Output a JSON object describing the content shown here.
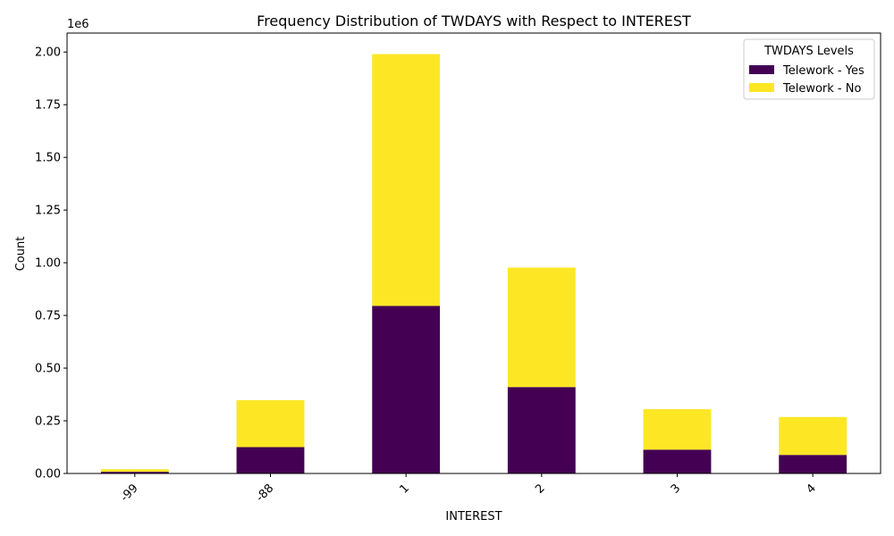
{
  "chart_data": {
    "type": "bar",
    "stacked": true,
    "title": "Frequency Distribution of TWDAYS with Respect to INTEREST",
    "xlabel": "INTEREST",
    "ylabel": "Count",
    "y_scale_label": "1e6",
    "categories": [
      "-99",
      "-88",
      "1",
      "2",
      "3",
      "4"
    ],
    "series": [
      {
        "name": "Telework - Yes",
        "color": "#440154",
        "values": [
          8000,
          125000,
          795000,
          410000,
          113000,
          88000
        ]
      },
      {
        "name": "Telework - No",
        "color": "#fde725",
        "values": [
          12000,
          223000,
          1195000,
          567000,
          192000,
          180000
        ]
      }
    ],
    "ylim": [
      0,
      2090000
    ],
    "yticks": [
      0,
      250000,
      500000,
      750000,
      1000000,
      1250000,
      1500000,
      1750000,
      2000000
    ],
    "ytick_labels": [
      "0.00",
      "0.25",
      "0.50",
      "0.75",
      "1.00",
      "1.25",
      "1.50",
      "1.75",
      "2.00"
    ],
    "grid": false,
    "legend": {
      "title": "TWDAYS Levels",
      "placement": "top-right"
    }
  }
}
